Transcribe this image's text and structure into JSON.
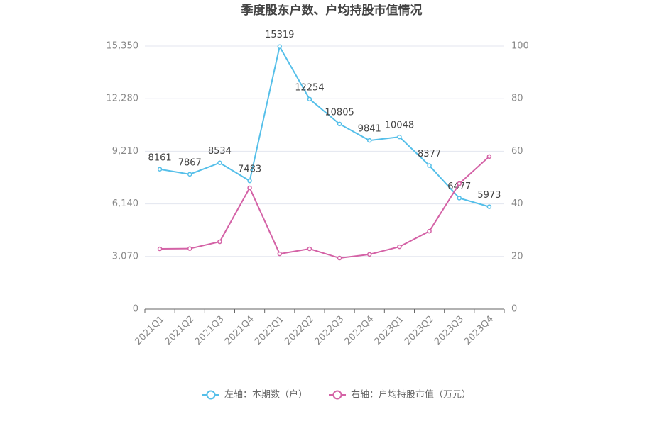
{
  "chart_data": {
    "type": "line",
    "title": "季度股东户数、户均持股市值情况",
    "categories": [
      "2021Q1",
      "2021Q2",
      "2021Q3",
      "2021Q4",
      "2022Q1",
      "2022Q2",
      "2022Q3",
      "2022Q4",
      "2023Q1",
      "2023Q2",
      "2023Q3",
      "2023Q4"
    ],
    "series": [
      {
        "name": "左轴：本期数（户）",
        "color": "#55bfe9",
        "values": [
          8161,
          7867,
          8534,
          7483,
          15319,
          12254,
          10805,
          9841,
          10048,
          8377,
          6477,
          5973
        ]
      },
      {
        "name": "右轴：户均持股市值（万元）",
        "color": "#d462a6",
        "axis": "y2",
        "values": [
          22.9,
          23.0,
          25.6,
          46.1,
          21.0,
          22.9,
          19.4,
          20.8,
          23.7,
          29.6,
          47.7,
          58.0
        ]
      }
    ],
    "ylim": [
      0,
      15350
    ],
    "yticks": [
      0,
      {
        "value": 3070,
        "label": "3,070"
      },
      {
        "value": 6140,
        "label": "6,140"
      },
      {
        "value": 9210,
        "label": "9,210"
      },
      {
        "value": 12280,
        "label": "12,280"
      },
      {
        "value": 15350,
        "label": "15,350"
      }
    ],
    "y2lim": [
      0,
      100
    ],
    "y2ticks": [
      0,
      20,
      40,
      60,
      80,
      100
    ],
    "grid": true
  }
}
